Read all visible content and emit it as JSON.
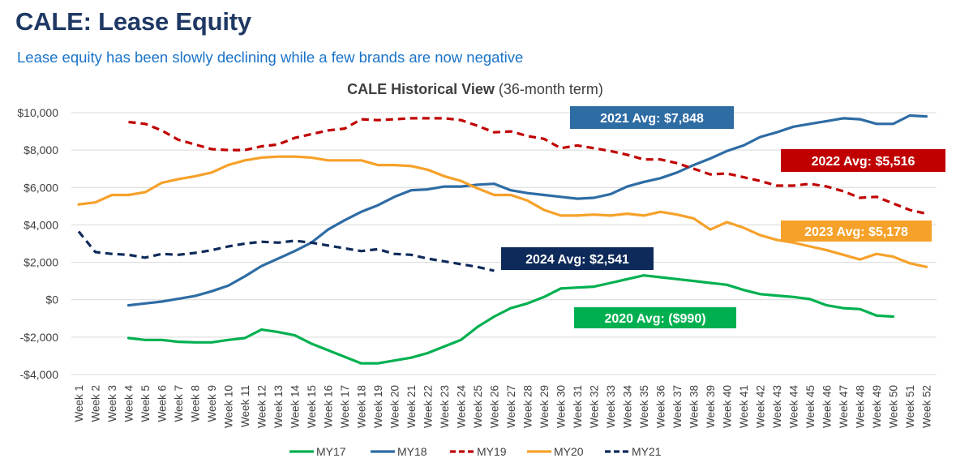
{
  "page": {
    "title": "CALE: Lease Equity",
    "subtitle": "Lease equity has been slowly declining while a few brands are now negative"
  },
  "chart_data": {
    "type": "line",
    "title_bold": "CALE Historical View",
    "title_rest": " (36-month term)",
    "xlabel": "",
    "ylabel": "",
    "ylim": [
      -4000,
      10000
    ],
    "yticks": [
      -4000,
      -2000,
      0,
      2000,
      4000,
      6000,
      8000,
      10000
    ],
    "ytick_labels": [
      "-$4,000",
      "-$2,000",
      "$0",
      "$2,000",
      "$4,000",
      "$6,000",
      "$8,000",
      "$10,000"
    ],
    "categories": [
      "Week 1",
      "Week 2",
      "Week 3",
      "Week 4",
      "Week 5",
      "Week 6",
      "Week 7",
      "Week 8",
      "Week 9",
      "Week 10",
      "Week 11",
      "Week 12",
      "Week 13",
      "Week 14",
      "Week 15",
      "Week 16",
      "Week 17",
      "Week 18",
      "Week 19",
      "Week 20",
      "Week 21",
      "Week 22",
      "Week 23",
      "Week 24",
      "Week 25",
      "Week 26",
      "Week 27",
      "Week 28",
      "Week 29",
      "Week 30",
      "Week 31",
      "Week 32",
      "Week 33",
      "Week 34",
      "Week 35",
      "Week 36",
      "Week 37",
      "Week 38",
      "Week 39",
      "Week 40",
      "Week 41",
      "Week 42",
      "Week 43",
      "Week 44",
      "Week 45",
      "Week 46",
      "Week 47",
      "Week 48",
      "Week 49",
      "Week 50",
      "Week 51",
      "Week 52"
    ],
    "grid": true,
    "legend_position": "bottom",
    "series": [
      {
        "name": "MY17",
        "color": "#00b050",
        "dashed": false,
        "values": [
          null,
          null,
          null,
          -2050,
          -2150,
          -2150,
          -2250,
          -2280,
          -2280,
          -2150,
          -2050,
          -1600,
          -1730,
          -1900,
          -2350,
          -2700,
          -3050,
          -3400,
          -3400,
          -3250,
          -3100,
          -2850,
          -2500,
          -2150,
          -1450,
          -900,
          -450,
          -200,
          150,
          600,
          650,
          700,
          900,
          1100,
          1300,
          1200,
          1100,
          1000,
          900,
          800,
          520,
          300,
          220,
          150,
          30,
          -300,
          -450,
          -500,
          -850,
          -900,
          null,
          null
        ]
      },
      {
        "name": "MY18",
        "color": "#2e6ca4",
        "dashed": false,
        "values": [
          null,
          null,
          null,
          -300,
          -200,
          -100,
          50,
          200,
          450,
          750,
          1250,
          1800,
          2200,
          2600,
          3050,
          3750,
          4250,
          4700,
          5050,
          5500,
          5850,
          5900,
          6050,
          6050,
          6150,
          6200,
          5850,
          5700,
          5600,
          5500,
          5400,
          5450,
          5650,
          6050,
          6300,
          6500,
          6800,
          7200,
          7550,
          7950,
          8250,
          8700,
          8950,
          9250,
          9400,
          9550,
          9700,
          9650,
          9400,
          9400,
          9850,
          9800
        ]
      },
      {
        "name": "MY19",
        "color": "#c00000",
        "dashed": true,
        "values": [
          null,
          null,
          null,
          9500,
          9400,
          9050,
          8550,
          8300,
          8050,
          8000,
          8000,
          8200,
          8300,
          8650,
          8850,
          9050,
          9150,
          9650,
          9600,
          9650,
          9700,
          9700,
          9700,
          9600,
          9300,
          8950,
          9000,
          8750,
          8600,
          8100,
          8250,
          8100,
          7950,
          7750,
          7500,
          7500,
          7300,
          7000,
          6700,
          6750,
          6550,
          6350,
          6100,
          6100,
          6200,
          6050,
          5800,
          5450,
          5500,
          5150,
          4800,
          4600
        ]
      },
      {
        "name": "MY20",
        "color": "#f6a12a",
        "dashed": false,
        "values": [
          5100,
          5200,
          5600,
          5600,
          5750,
          6250,
          6450,
          6600,
          6800,
          7200,
          7450,
          7600,
          7650,
          7650,
          7600,
          7450,
          7450,
          7450,
          7200,
          7200,
          7150,
          6950,
          6600,
          6350,
          5950,
          5600,
          5600,
          5300,
          4800,
          4500,
          4500,
          4550,
          4500,
          4600,
          4500,
          4700,
          4550,
          4350,
          3750,
          4150,
          3850,
          3450,
          3200,
          3050,
          2850,
          2650,
          2400,
          2150,
          2450,
          2300,
          1950,
          1750
        ]
      },
      {
        "name": "MY21",
        "color": "#0e2a5a",
        "dashed": true,
        "values": [
          3650,
          2550,
          2450,
          2400,
          2250,
          2450,
          2400,
          2500,
          2650,
          2850,
          3000,
          3100,
          3050,
          3150,
          3050,
          2900,
          2750,
          2600,
          2700,
          2450,
          2400,
          2200,
          2050,
          1900,
          1750,
          1550,
          null,
          null,
          null,
          null,
          null,
          null,
          null,
          null,
          null,
          null,
          null,
          null,
          null,
          null,
          null,
          null,
          null,
          null,
          null,
          null,
          null,
          null,
          null,
          null,
          null,
          null
        ]
      }
    ],
    "annotations": [
      {
        "text": "2021 Avg: $7,848",
        "bg": "#2e6ca4",
        "fg": "#ffffff"
      },
      {
        "text": "2022 Avg: $5,516",
        "bg": "#c00000",
        "fg": "#ffffff"
      },
      {
        "text": "2023 Avg: $5,178",
        "bg": "#f6a12a",
        "fg": "#ffffff"
      },
      {
        "text": "2024 Avg: $2,541",
        "bg": "#0e2a5a",
        "fg": "#ffffff"
      },
      {
        "text": "2020 Avg: ($990)",
        "bg": "#00b050",
        "fg": "#ffffff"
      }
    ]
  }
}
